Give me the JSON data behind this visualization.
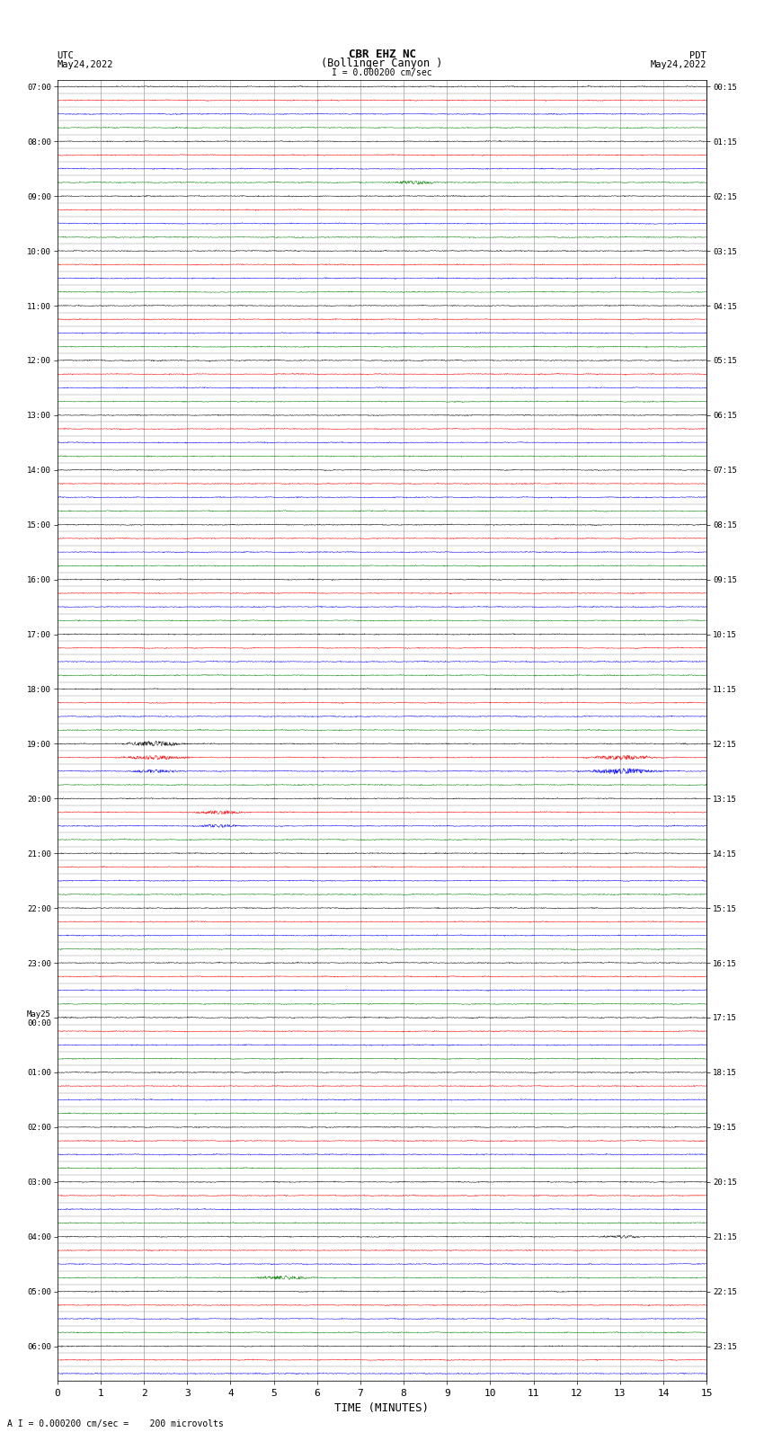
{
  "title_line1": "CBR EHZ NC",
  "title_line2": "(Bollinger Canyon )",
  "scale_label": "I = 0.000200 cm/sec",
  "footer_label": "A I = 0.000200 cm/sec =    200 microvolts",
  "xlabel": "TIME (MINUTES)",
  "utc_times": [
    "07:00",
    "",
    "",
    "",
    "08:00",
    "",
    "",
    "",
    "09:00",
    "",
    "",
    "",
    "10:00",
    "",
    "",
    "",
    "11:00",
    "",
    "",
    "",
    "12:00",
    "",
    "",
    "",
    "13:00",
    "",
    "",
    "",
    "14:00",
    "",
    "",
    "",
    "15:00",
    "",
    "",
    "",
    "16:00",
    "",
    "",
    "",
    "17:00",
    "",
    "",
    "",
    "18:00",
    "",
    "",
    "",
    "19:00",
    "",
    "",
    "",
    "20:00",
    "",
    "",
    "",
    "21:00",
    "",
    "",
    "",
    "22:00",
    "",
    "",
    "",
    "23:00",
    "",
    "",
    "",
    "May25\n00:00",
    "",
    "",
    "",
    "01:00",
    "",
    "",
    "",
    "02:00",
    "",
    "",
    "",
    "03:00",
    "",
    "",
    "",
    "04:00",
    "",
    "",
    "",
    "05:00",
    "",
    "",
    "",
    "06:00",
    "",
    ""
  ],
  "pdt_times": [
    "00:15",
    "",
    "",
    "",
    "01:15",
    "",
    "",
    "",
    "02:15",
    "",
    "",
    "",
    "03:15",
    "",
    "",
    "",
    "04:15",
    "",
    "",
    "",
    "05:15",
    "",
    "",
    "",
    "06:15",
    "",
    "",
    "",
    "07:15",
    "",
    "",
    "",
    "08:15",
    "",
    "",
    "",
    "09:15",
    "",
    "",
    "",
    "10:15",
    "",
    "",
    "",
    "11:15",
    "",
    "",
    "",
    "12:15",
    "",
    "",
    "",
    "13:15",
    "",
    "",
    "",
    "14:15",
    "",
    "",
    "",
    "15:15",
    "",
    "",
    "",
    "16:15",
    "",
    "",
    "",
    "17:15",
    "",
    "",
    "",
    "18:15",
    "",
    "",
    "",
    "19:15",
    "",
    "",
    "",
    "20:15",
    "",
    "",
    "",
    "21:15",
    "",
    "",
    "",
    "22:15",
    "",
    "",
    "",
    "23:15",
    "",
    ""
  ],
  "line_colors": [
    "black",
    "red",
    "blue",
    "green"
  ],
  "num_rows": 95,
  "num_minutes": 15,
  "background_color": "white",
  "grid_color": "#888888",
  "figsize": [
    8.5,
    16.13
  ],
  "dpi": 100,
  "left_header_line1": "UTC",
  "left_header_line2": "May24,2022",
  "right_header_line1": "PDT",
  "right_header_line2": "May24,2022"
}
